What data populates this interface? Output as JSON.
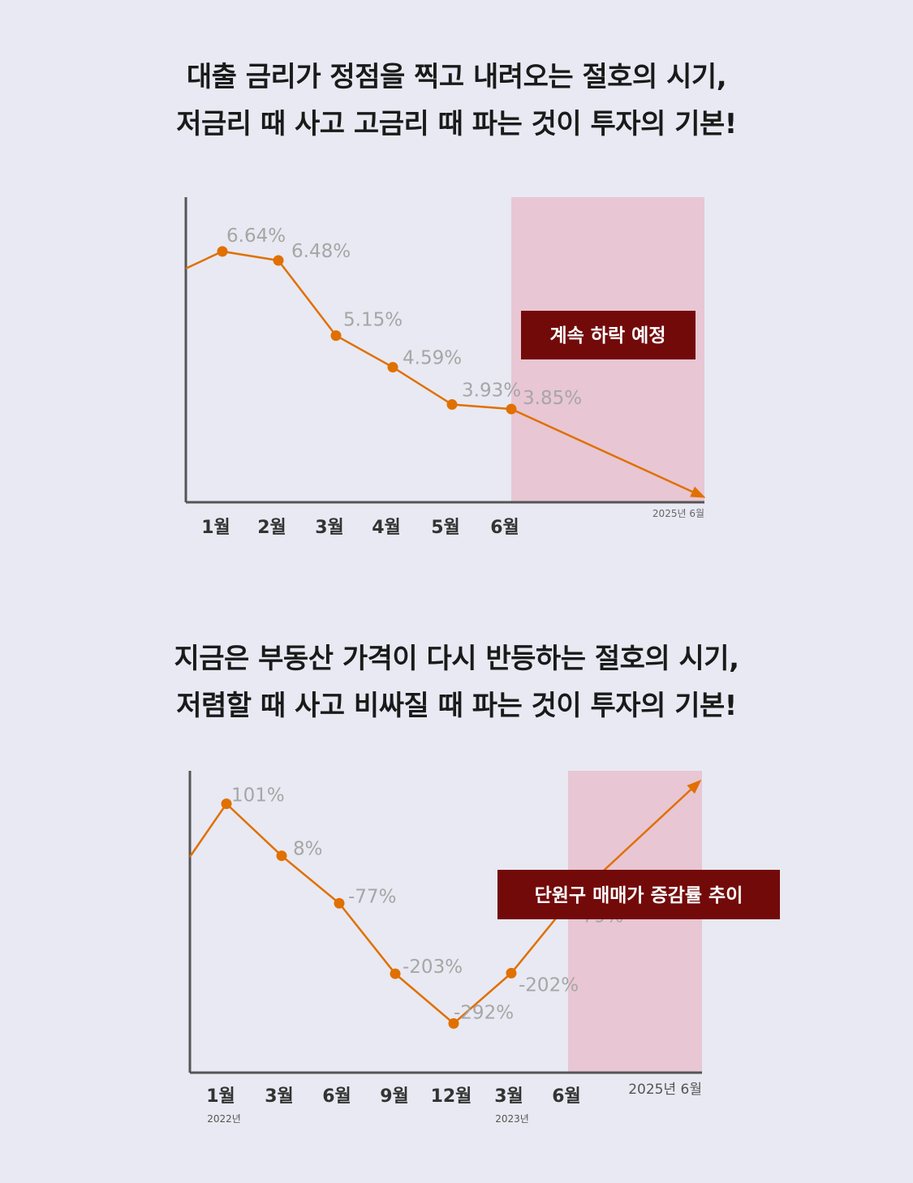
{
  "section1": {
    "headline_line1": "대출 금리가 정점을 찍고 내려오는 절호의 시기,",
    "headline_line2": "저금리 때 사고 고금리 때 파는 것이 투자의 기본!"
  },
  "section2": {
    "headline_line1": "지금은 부동산 가격이 다시 반등하는 절호의 시기,",
    "headline_line2": "저렴할 때 사고 비싸질 때 파는 것이 투자의 기본!"
  },
  "colors": {
    "background": "#e8e9f2",
    "line": "#e07000",
    "highlight": "#e8c6d3",
    "label_box": "#730a0a",
    "value_label": "#a6a6a6",
    "axis": "#555555"
  },
  "chart_data": [
    {
      "type": "line",
      "title": "",
      "annotation": "계속 하락 예정",
      "categories": [
        "1월",
        "2월",
        "3월",
        "4월",
        "5월",
        "6월"
      ],
      "end_label": "2025년 6월",
      "values": [
        6.64,
        6.48,
        5.15,
        4.59,
        3.93,
        3.85
      ],
      "value_labels": [
        "6.64%",
        "6.48%",
        "5.15%",
        "4.59%",
        "3.93%",
        "3.85%"
      ],
      "ylim": [
        2.2,
        7.6
      ],
      "trend": "down",
      "highlight_from": "6월",
      "grid": false
    },
    {
      "type": "line",
      "title": "",
      "annotation": "단원구 매매가 증감률 추이",
      "categories": [
        "1월",
        "3월",
        "6월",
        "9월",
        "12월",
        "3월",
        "6월"
      ],
      "year_labels": [
        "2022년",
        "",
        "",
        "",
        "",
        "2023년",
        ""
      ],
      "end_label": "2025년 6월",
      "values": [
        101,
        8,
        -77,
        -203,
        -292,
        -202,
        -79
      ],
      "value_labels": [
        "101%",
        "8%",
        "-77%",
        "-203%",
        "-292%",
        "-202%",
        "-79%"
      ],
      "ylim": [
        -380,
        160
      ],
      "trend": "up",
      "highlight_from": "6월",
      "grid": false
    }
  ]
}
